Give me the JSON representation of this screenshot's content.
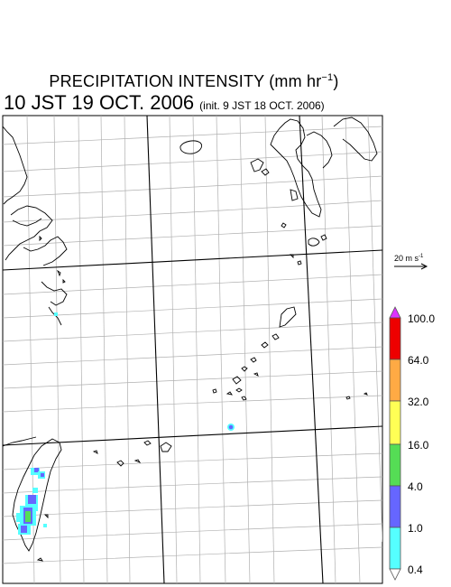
{
  "header": {
    "title": "PRECIPITATION INTENSITY (mm hr",
    "title_exp": "−1",
    "title_close": ")",
    "valid_time": "10 JST 19 OCT. 2006",
    "init_time": "(init. 9 JST 18 OCT. 2006)"
  },
  "wind_vector": {
    "label": "20 m s",
    "label_exp": "-1"
  },
  "legend": {
    "levels": [
      "100.0",
      "64.0",
      "32.0",
      "16.0",
      "4.0",
      "1.0",
      "0.4"
    ],
    "colors": [
      "#ffffff",
      "#55ffff",
      "#6666ff",
      "#55dd55",
      "#ffff55",
      "#ffaa44",
      "#ee0000",
      "#dd33ff"
    ]
  }
}
